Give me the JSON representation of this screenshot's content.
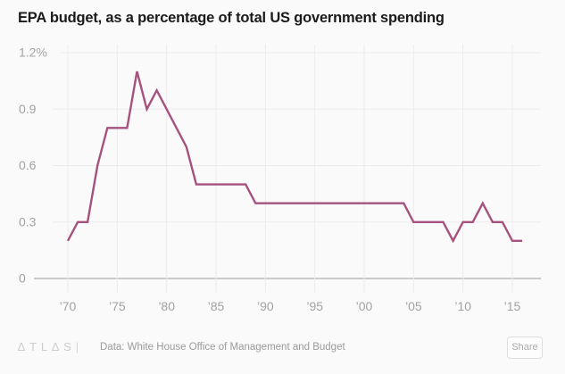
{
  "title": "EPA budget, as a percentage of total US government spending",
  "chart_data": {
    "type": "line",
    "series_name": "EPA budget as % of total US government spending",
    "unit": "%",
    "x": [
      1970,
      1971,
      1972,
      1973,
      1974,
      1975,
      1976,
      1977,
      1978,
      1979,
      1980,
      1981,
      1982,
      1983,
      1984,
      1985,
      1986,
      1987,
      1988,
      1989,
      1990,
      1991,
      1992,
      1993,
      1994,
      1995,
      1996,
      1997,
      1998,
      1999,
      2000,
      2001,
      2002,
      2003,
      2004,
      2005,
      2006,
      2007,
      2008,
      2009,
      2010,
      2011,
      2012,
      2013,
      2014,
      2015,
      2016
    ],
    "values": [
      0.2,
      0.3,
      0.3,
      0.6,
      0.8,
      0.8,
      0.8,
      1.1,
      0.9,
      1.0,
      0.9,
      0.8,
      0.7,
      0.5,
      0.5,
      0.5,
      0.5,
      0.5,
      0.5,
      0.4,
      0.4,
      0.4,
      0.4,
      0.4,
      0.4,
      0.4,
      0.4,
      0.4,
      0.4,
      0.4,
      0.4,
      0.4,
      0.4,
      0.4,
      0.4,
      0.3,
      0.3,
      0.3,
      0.3,
      0.2,
      0.3,
      0.3,
      0.4,
      0.3,
      0.3,
      0.2,
      0.2
    ],
    "xlim": [
      1970,
      2016
    ],
    "ylim": [
      0,
      1.2
    ],
    "grid": true,
    "legend": "none",
    "x_tick_years": [
      1970,
      1975,
      1980,
      1985,
      1990,
      1995,
      2000,
      2005,
      2010,
      2015
    ],
    "x_tick_labels": [
      "’70",
      "’75",
      "’80",
      "’85",
      "’90",
      "’95",
      "’00",
      "’05",
      "’10",
      "’15"
    ],
    "y_tick_values": [
      0,
      0.3,
      0.6,
      0.9,
      1.2
    ],
    "y_tick_labels": [
      "0",
      "0.3",
      "0.6",
      "0.9",
      "1.2%"
    ],
    "line_color": "#a6527f"
  },
  "colors": {
    "background": "#fafafa",
    "title_text": "#1b1b1b",
    "tick_text": "#a2a2a2",
    "gridline": "#ececec",
    "axis_line": "#9c9c9c",
    "line": "#a6527f"
  },
  "footer": {
    "brand_name": "Atlas",
    "brand_display": "∆TL∆S",
    "brand_separator": "|",
    "credit": "Data: White House Office of Management and Budget",
    "share_label": "Share"
  }
}
